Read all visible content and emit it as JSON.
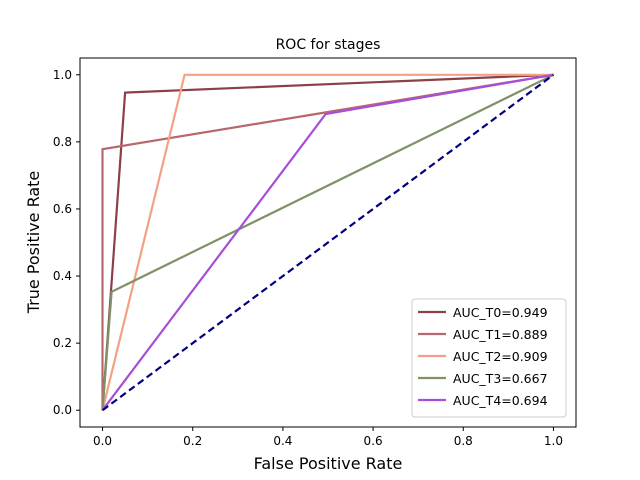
{
  "chart_data": {
    "type": "line",
    "title": "ROC for stages",
    "xlabel": "False Positive Rate",
    "ylabel": "True Positive Rate",
    "xlim": [
      -0.05,
      1.05
    ],
    "ylim": [
      -0.05,
      1.05
    ],
    "xticks": [
      0.0,
      0.2,
      0.4,
      0.6,
      0.8,
      1.0
    ],
    "yticks": [
      0.0,
      0.2,
      0.4,
      0.6,
      0.8,
      1.0
    ],
    "xtick_labels": [
      "0.0",
      "0.2",
      "0.4",
      "0.6",
      "0.8",
      "1.0"
    ],
    "ytick_labels": [
      "0.0",
      "0.2",
      "0.4",
      "0.6",
      "0.8",
      "1.0"
    ],
    "legend_position": "lower-right",
    "series": [
      {
        "name": "AUC_T0=0.949",
        "color": "#8b4049",
        "x": [
          0,
          0.05,
          1
        ],
        "y": [
          0,
          0.947,
          1
        ]
      },
      {
        "name": "AUC_T1=0.889",
        "color": "#b8676a",
        "x": [
          0,
          0,
          0.5,
          1
        ],
        "y": [
          0,
          0.778,
          0.889,
          1
        ]
      },
      {
        "name": "AUC_T2=0.909",
        "color": "#f2a185",
        "x": [
          0,
          0.182,
          1
        ],
        "y": [
          0,
          1.0,
          1
        ]
      },
      {
        "name": "AUC_T3=0.667",
        "color": "#7f9167",
        "x": [
          0,
          0.02,
          1
        ],
        "y": [
          0,
          0.353,
          1
        ]
      },
      {
        "name": "AUC_T4=0.694",
        "color": "#a64ed8",
        "x": [
          0,
          0.495,
          1
        ],
        "y": [
          0,
          0.883,
          1
        ]
      }
    ],
    "reference_line": {
      "color": "#000080",
      "style": "dashed",
      "x": [
        0,
        1
      ],
      "y": [
        0,
        1
      ]
    }
  }
}
